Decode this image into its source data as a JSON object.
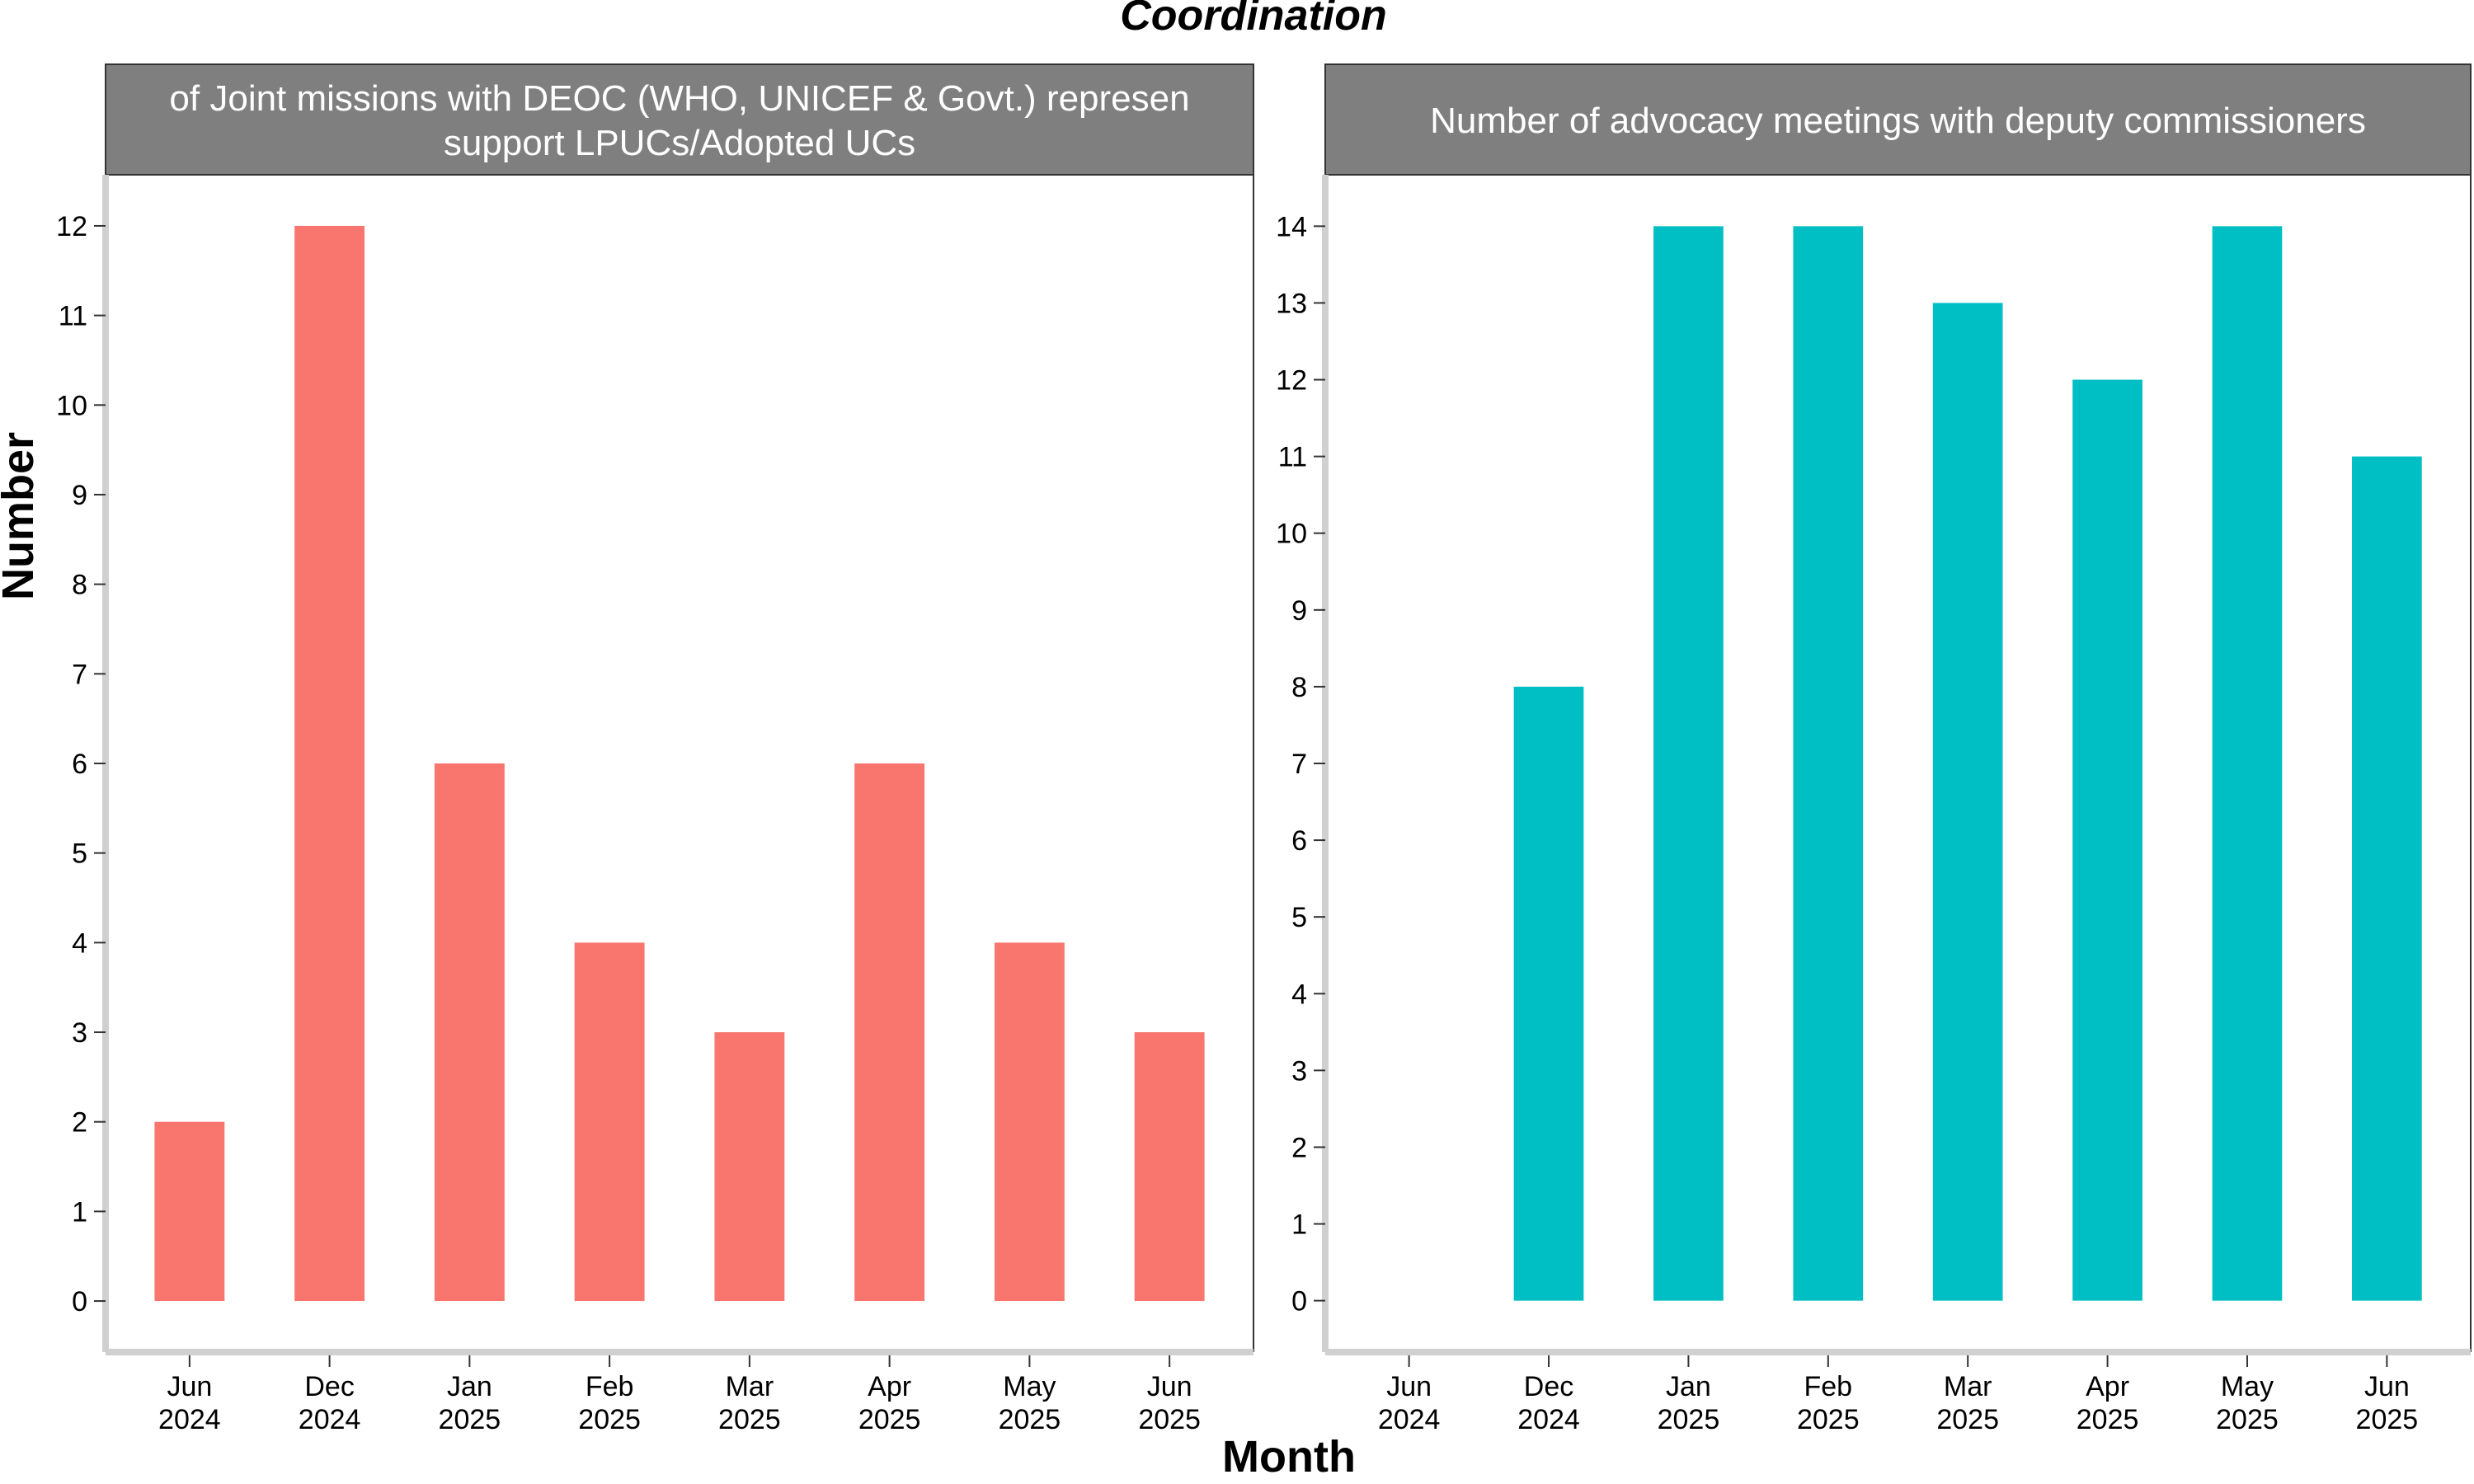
{
  "title": "Coordination",
  "xlabel": "Month",
  "ylabel": "Number",
  "categories": [
    [
      "Jun",
      "2024"
    ],
    [
      "Dec",
      "2024"
    ],
    [
      "Jan",
      "2025"
    ],
    [
      "Feb",
      "2025"
    ],
    [
      "Mar",
      "2025"
    ],
    [
      "Apr",
      "2025"
    ],
    [
      "May",
      "2025"
    ],
    [
      "Jun",
      "2025"
    ]
  ],
  "chart_data": [
    {
      "type": "bar",
      "panel_title_lines": [
        "of Joint missions with DEOC (WHO, UNICEF & Govt.) represen",
        "support LPUCs/Adopted UCs"
      ],
      "categories": [
        "Jun 2024",
        "Dec 2024",
        "Jan 2025",
        "Feb 2025",
        "Mar 2025",
        "Apr 2025",
        "May 2025",
        "Jun 2025"
      ],
      "values": [
        2,
        12,
        6,
        4,
        3,
        6,
        4,
        3
      ],
      "color": "#F8766D",
      "ylim": [
        -0.57,
        12.57
      ],
      "yticks": [
        0,
        1,
        2,
        3,
        4,
        5,
        6,
        7,
        8,
        9,
        10,
        11,
        12
      ],
      "xlabel": "Month",
      "ylabel": "Number",
      "grid": false
    },
    {
      "type": "bar",
      "panel_title_lines": [
        "Number of advocacy meetings with deputy commissioners"
      ],
      "categories": [
        "Jun 2024",
        "Dec 2024",
        "Jan 2025",
        "Feb 2025",
        "Mar 2025",
        "Apr 2025",
        "May 2025",
        "Jun 2025"
      ],
      "values": [
        0,
        8,
        14,
        14,
        13,
        12,
        14,
        11
      ],
      "color": "#00BFC4",
      "ylim": [
        -0.67,
        14.67
      ],
      "yticks": [
        0,
        1,
        2,
        3,
        4,
        5,
        6,
        7,
        8,
        9,
        10,
        11,
        12,
        13,
        14
      ],
      "xlabel": "Month",
      "ylabel": "Number",
      "grid": false
    }
  ]
}
